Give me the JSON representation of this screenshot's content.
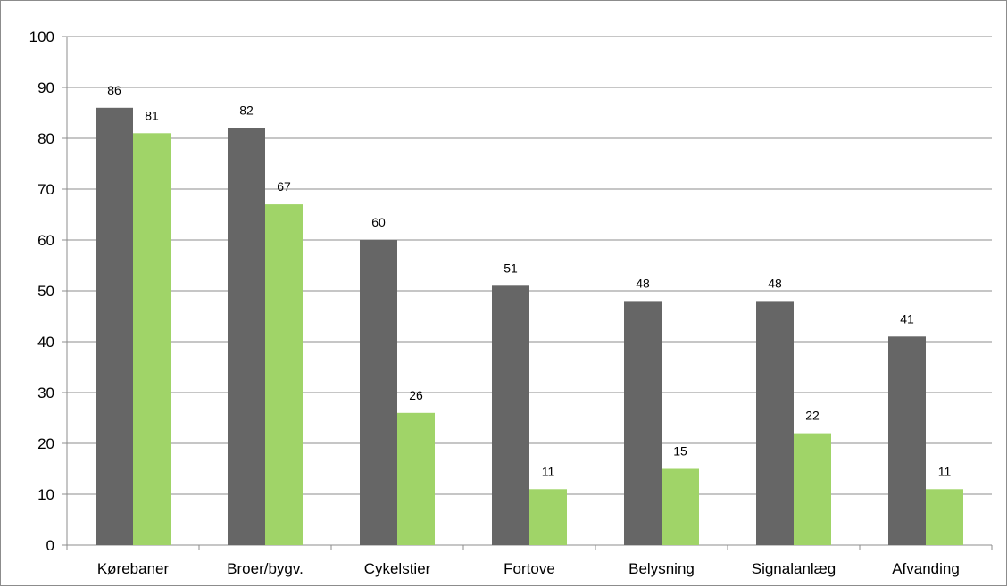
{
  "chart_data": {
    "type": "bar",
    "title": "",
    "xlabel": "",
    "ylabel": "",
    "ylim": [
      0,
      100
    ],
    "yticks": [
      0,
      10,
      20,
      30,
      40,
      50,
      60,
      70,
      80,
      90,
      100
    ],
    "grid": true,
    "legend": "none",
    "categories": [
      "Kørebaner",
      "Broer/bygv.",
      "Cykelstier",
      "Fortove",
      "Belysning",
      "Signalanlæg",
      "Afvanding"
    ],
    "series": [
      {
        "color": "#666666",
        "values": [
          86,
          82,
          60,
          51,
          48,
          48,
          41
        ]
      },
      {
        "color": "#a0d468",
        "values": [
          81,
          67,
          26,
          11,
          15,
          22,
          11
        ]
      }
    ]
  }
}
